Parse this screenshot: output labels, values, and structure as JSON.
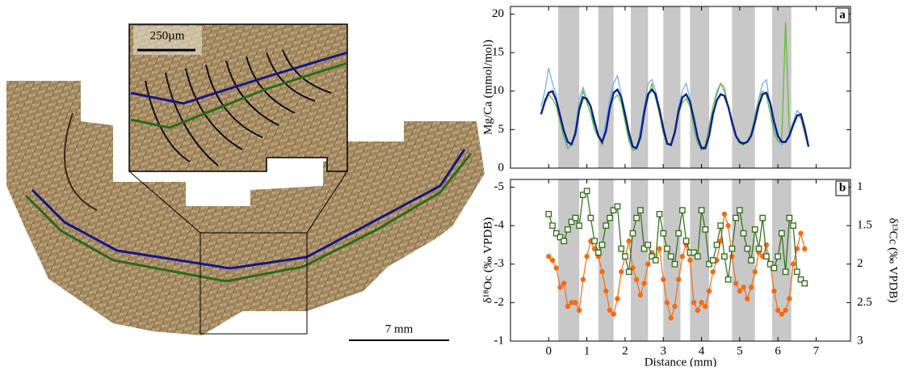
{
  "image": {
    "inset_scale": "250µm",
    "main_scale": "7 mm"
  },
  "chart_data": [
    {
      "type": "line",
      "label": "a",
      "ylabel": "Mg/Ca (mmol/mol)",
      "xlim": [
        -1,
        7.9
      ],
      "xticks": [
        0,
        1,
        2,
        3,
        4,
        5,
        6,
        7
      ],
      "ylim": [
        0,
        21
      ],
      "yticks": [
        0,
        5,
        10,
        15,
        20
      ],
      "shaded_ranges": [
        [
          0.25,
          0.8
        ],
        [
          1.3,
          1.7
        ],
        [
          2.15,
          2.6
        ],
        [
          3.0,
          3.45
        ],
        [
          3.7,
          4.2
        ],
        [
          4.8,
          5.4
        ],
        [
          5.85,
          6.35
        ]
      ],
      "x": [
        -0.2,
        -0.1,
        0,
        0.1,
        0.2,
        0.3,
        0.4,
        0.5,
        0.6,
        0.7,
        0.8,
        0.9,
        1,
        1.1,
        1.2,
        1.3,
        1.4,
        1.5,
        1.6,
        1.7,
        1.8,
        1.9,
        2,
        2.1,
        2.2,
        2.3,
        2.4,
        2.5,
        2.6,
        2.7,
        2.8,
        2.9,
        3,
        3.1,
        3.2,
        3.3,
        3.4,
        3.5,
        3.6,
        3.7,
        3.8,
        3.9,
        4,
        4.1,
        4.2,
        4.3,
        4.4,
        4.5,
        4.6,
        4.7,
        4.8,
        4.9,
        5,
        5.1,
        5.2,
        5.3,
        5.4,
        5.5,
        5.6,
        5.7,
        5.8,
        5.9,
        6,
        6.1,
        6.2,
        6.3,
        6.4,
        6.5,
        6.6,
        6.7,
        6.8
      ],
      "series": [
        {
          "color": "#6fa8e8",
          "marker": "none",
          "line_width": 1.2,
          "axis": "y",
          "values": [
            8,
            10,
            13,
            11,
            9.5,
            6,
            4,
            3,
            3,
            5,
            9,
            10.5,
            9,
            8,
            5,
            4,
            3.5,
            6,
            9,
            11,
            12,
            9.5,
            6,
            4,
            2.5,
            2.5,
            5,
            8,
            11,
            11.5,
            10,
            7,
            5,
            3,
            3,
            5,
            8,
            10,
            11,
            9,
            6,
            3.5,
            2.3,
            2.5,
            5,
            8,
            10,
            11,
            10.5,
            8,
            6,
            4,
            3.5,
            3,
            3.5,
            4.5,
            7,
            9,
            11,
            11.5,
            8,
            5,
            3.5,
            3,
            3.5,
            4.5,
            6,
            7.5,
            7,
            5,
            2.7
          ]
        },
        {
          "color": "#5fb832",
          "marker": "none",
          "line_width": 1.2,
          "axis": "y",
          "values": [
            7,
            9,
            9.5,
            9,
            8,
            6,
            4,
            2.5,
            3,
            5,
            8,
            10,
            8.5,
            7,
            5,
            4,
            3,
            5,
            8,
            9,
            9.5,
            8.5,
            6,
            3.5,
            2.3,
            2.5,
            4.5,
            7,
            9,
            11,
            9,
            7,
            4.5,
            3,
            3.2,
            5,
            7,
            8.5,
            9,
            8,
            5,
            3.2,
            2.5,
            3,
            5.5,
            8,
            9.5,
            11,
            10,
            8,
            5.5,
            4,
            3.2,
            3,
            3.5,
            4.5,
            6.5,
            9,
            10,
            9.5,
            7,
            4.5,
            3.5,
            3.5,
            19,
            4.5,
            5.5,
            7,
            6.5,
            4.5,
            2.7
          ]
        },
        {
          "color": "#0a1f8a",
          "marker": "none",
          "line_width": 2.4,
          "axis": "y",
          "values": [
            7,
            8.6,
            9.8,
            10,
            8.8,
            6.8,
            4.8,
            3.4,
            3.1,
            4.5,
            7.6,
            9.2,
            9,
            8,
            6,
            4.2,
            3.4,
            4.8,
            7.8,
            9.8,
            10.2,
            9.2,
            7,
            4.6,
            2.8,
            2.6,
            4,
            7.2,
            9.6,
            10.2,
            9.6,
            7.6,
            5.2,
            3.2,
            3,
            4.6,
            7.4,
            9.2,
            9.6,
            8.6,
            6.4,
            4,
            2.6,
            2.6,
            4.2,
            7,
            8.8,
            9.6,
            9.4,
            8,
            6,
            4.2,
            3.4,
            3.2,
            3.4,
            4.2,
            6,
            8.2,
            9.6,
            9.8,
            8.4,
            6,
            4.2,
            3.4,
            3.4,
            4.2,
            5.6,
            6.8,
            7,
            5.2,
            2.8
          ]
        }
      ]
    },
    {
      "type": "line",
      "label": "b",
      "xlabel": "Distance (mm)",
      "ylabel": "δ¹⁸Oc (‰ VPDB)",
      "y2label": "δ¹³Cc (‰ VPDB)",
      "xlim": [
        -1,
        7.9
      ],
      "xticks": [
        0,
        1,
        2,
        3,
        4,
        5,
        6,
        7
      ],
      "ylim": [
        -1,
        -5.2
      ],
      "yticks": [
        -5,
        -4,
        -3,
        -2,
        -1
      ],
      "y2lim": [
        3,
        0.9
      ],
      "y2ticks": [
        1,
        1.5,
        2,
        2.5,
        3
      ],
      "x": [
        0,
        0.1,
        0.2,
        0.3,
        0.4,
        0.5,
        0.6,
        0.7,
        0.8,
        0.9,
        1,
        1.1,
        1.2,
        1.3,
        1.4,
        1.5,
        1.6,
        1.7,
        1.8,
        1.9,
        2,
        2.1,
        2.2,
        2.3,
        2.4,
        2.5,
        2.6,
        2.7,
        2.8,
        2.9,
        3,
        3.1,
        3.2,
        3.3,
        3.4,
        3.5,
        3.6,
        3.7,
        3.8,
        3.9,
        4,
        4.1,
        4.2,
        4.3,
        4.4,
        4.5,
        4.6,
        4.7,
        4.8,
        4.9,
        5,
        5.1,
        5.2,
        5.3,
        5.4,
        5.5,
        5.6,
        5.7,
        5.8,
        5.9,
        6,
        6.1,
        6.2,
        6.3,
        6.4,
        6.5,
        6.6,
        6.7
      ],
      "series": [
        {
          "color": "#f56a12",
          "marker": "circle",
          "axis": "y",
          "values": [
            -3.2,
            -3.1,
            -2.9,
            -2.4,
            -2.5,
            -1.9,
            -2,
            -2,
            -1.8,
            -2.6,
            -3.2,
            -3.6,
            -3.4,
            -3.2,
            -2.8,
            -2.3,
            -1.8,
            -1.7,
            -2.1,
            -2.8,
            -3.2,
            -3.6,
            -2.9,
            -2.6,
            -2.2,
            -2.5,
            -3,
            -3.3,
            -3.1,
            -3.4,
            -2.6,
            -2,
            -1.6,
            -1.9,
            -2.6,
            -3.2,
            -3.5,
            -3.1,
            -2,
            -1.8,
            -2,
            -1.9,
            -2.3,
            -2.8,
            -3.1,
            -3.6,
            -4.3,
            -4,
            -3.2,
            -2.5,
            -2.3,
            -2.4,
            -2.1,
            -2.4,
            -2.8,
            -3.3,
            -3.2,
            -3.5,
            -3,
            -2.3,
            -1.8,
            -1.7,
            -1.8,
            -2.1,
            -3,
            -3.4,
            -3.8,
            -3.4
          ]
        },
        {
          "color": "#2d6b14",
          "marker": "square",
          "axis": "y2",
          "values": [
            1.35,
            1.5,
            1.6,
            1.65,
            1.7,
            1.55,
            1.45,
            1.4,
            1.5,
            1.1,
            1.05,
            1.4,
            1.7,
            1.85,
            1.75,
            1.5,
            1.4,
            1.3,
            1.25,
            1.8,
            1.9,
            2.1,
            1.6,
            1.4,
            1.3,
            1.8,
            1.75,
            1.9,
            1.95,
            1.35,
            1.6,
            1.8,
            1.9,
            2,
            1.6,
            1.3,
            1.7,
            1.85,
            1.85,
            1.9,
            1.3,
            1.55,
            2,
            1.95,
            1.75,
            1.5,
            1.9,
            2.2,
            1.8,
            1.4,
            1.3,
            1.6,
            1.8,
            1.95,
            1.55,
            1.8,
            1.4,
            1.9,
            2,
            2.05,
            1.9,
            1.6,
            2.1,
            1.4,
            1.5,
            2.1,
            2.2,
            2.25
          ]
        }
      ]
    }
  ]
}
